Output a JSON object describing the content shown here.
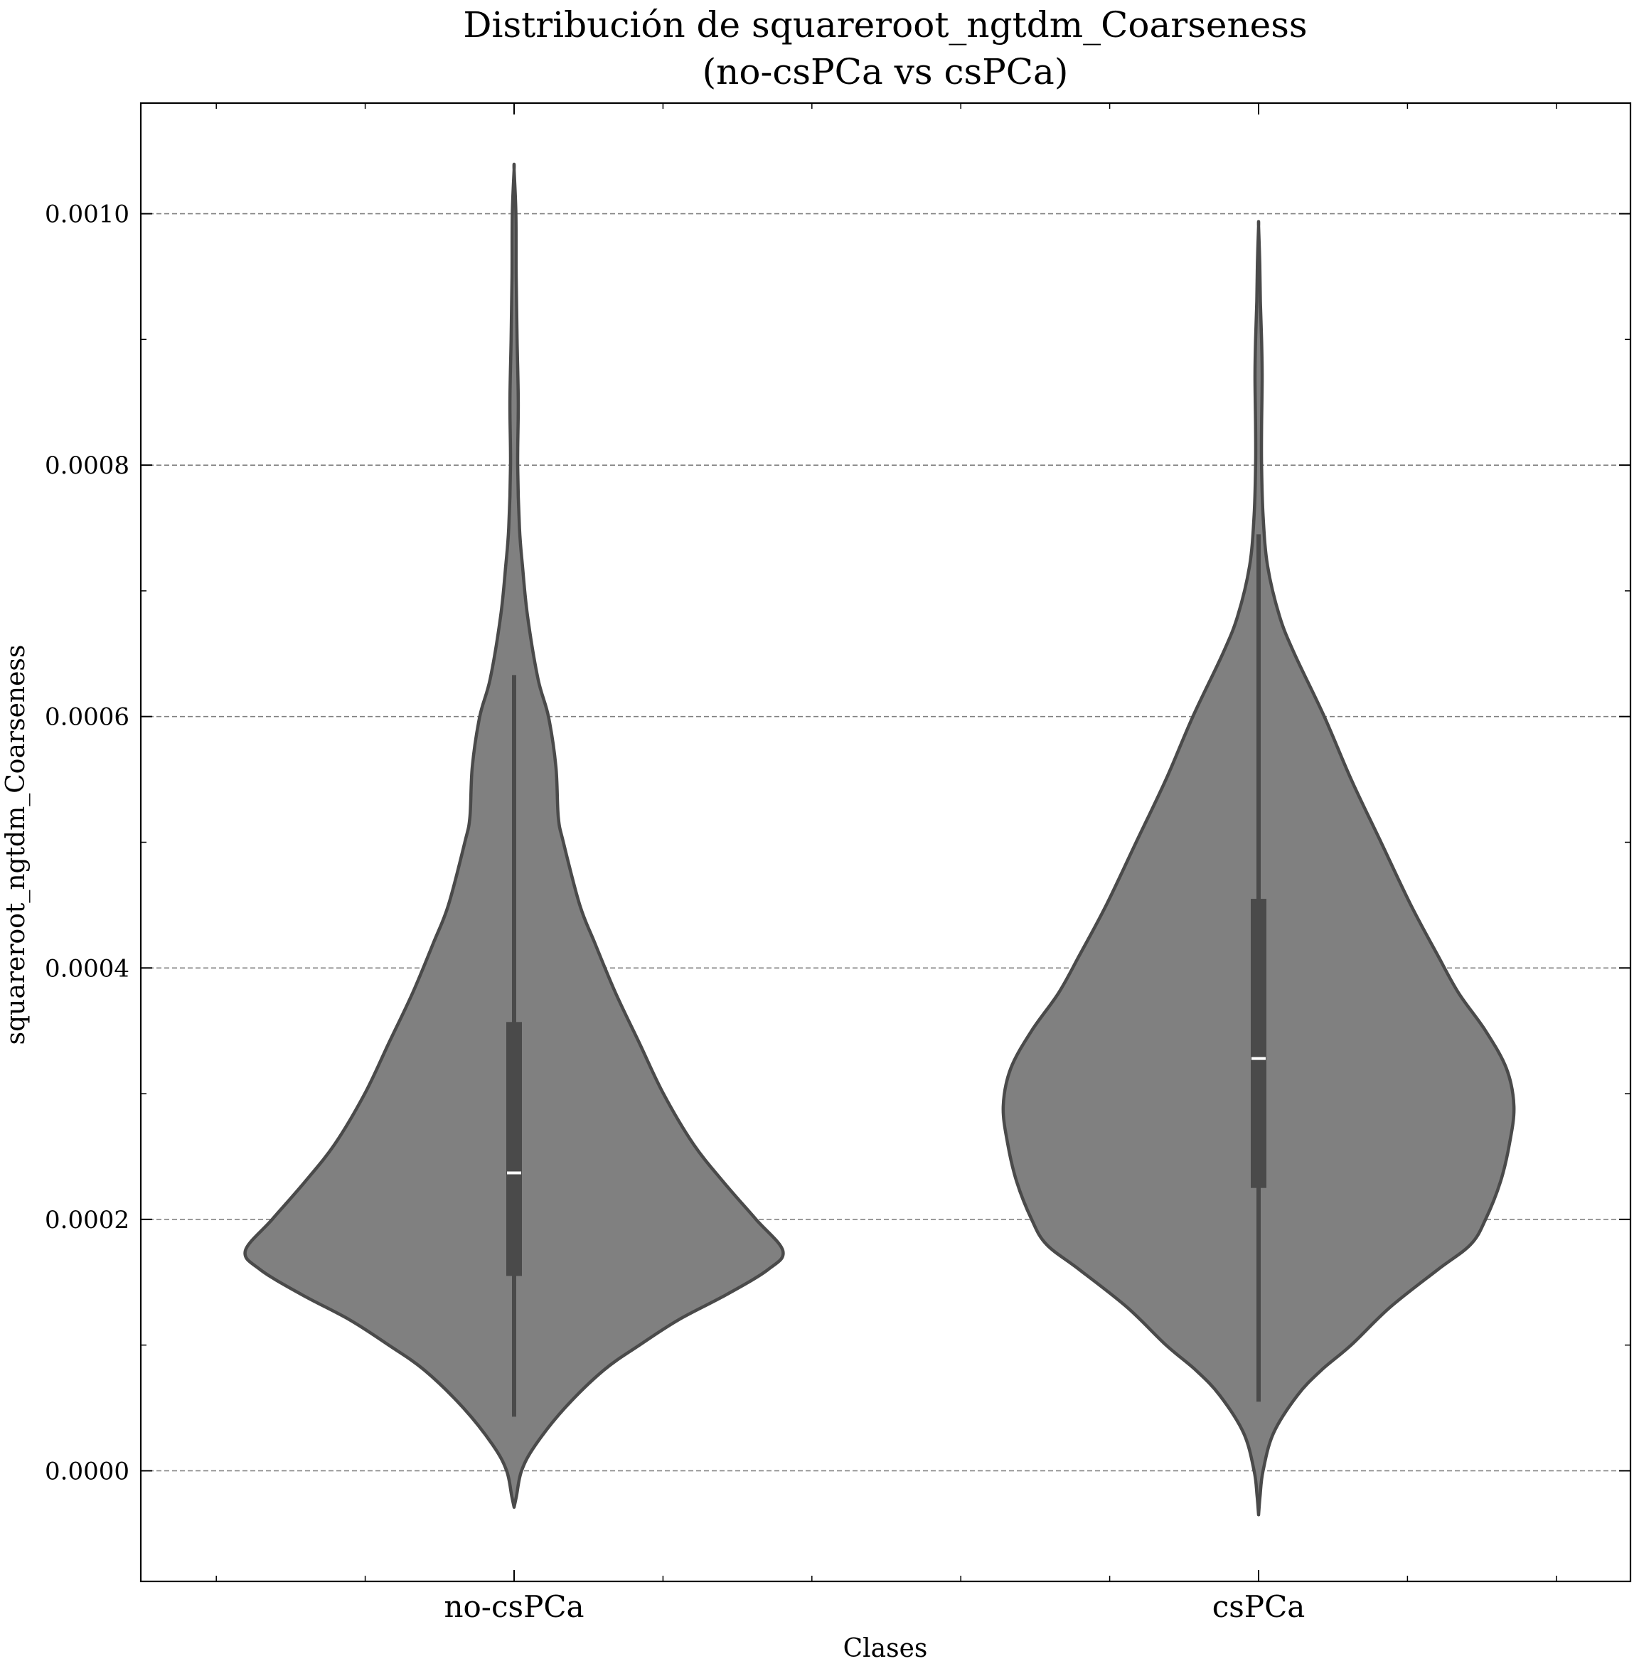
{
  "chart_data": {
    "type": "violin",
    "title_line1": "Distribución de squareroot_ngtdm_Coarseness",
    "title_line2": "(no-csPCa vs csPCa)",
    "xlabel": "Clases",
    "ylabel": "squareroot_ngtdm_Coarseness",
    "categories": [
      "no-csPCa",
      "csPCa"
    ],
    "ylim": [
      -8.8e-05,
      0.001088
    ],
    "yticks": [
      0.0,
      0.0002,
      0.0004,
      0.0006,
      0.0008,
      0.001
    ],
    "ytick_labels": [
      "0.0000",
      "0.0002",
      "0.0004",
      "0.0006",
      "0.0008",
      "0.0010"
    ],
    "grid": "y-dashed",
    "colors": {
      "violin_fill": "#808080",
      "violin_edge": "#4a4a4a",
      "box": "#4a4a4a",
      "median": "#ffffff",
      "grid": "#808080"
    },
    "violins": [
      {
        "category": "no-csPCa",
        "min": 4.3e-05,
        "q1": 0.000155,
        "median": 0.000237,
        "q3": 0.000357,
        "max": 0.000633,
        "density_y": [
          -2.9e-05,
          -2e-05,
          0.0,
          2e-05,
          5e-05,
          8e-05,
          0.0001,
          0.00012,
          0.00014,
          0.00016,
          0.000175,
          0.0002,
          0.00023,
          0.00026,
          0.0003,
          0.00034,
          0.00038,
          0.00042,
          0.00045,
          0.0005,
          0.00052,
          0.00056,
          0.0006,
          0.00063,
          0.00068,
          0.00072,
          0.00075,
          0.0008,
          0.00085,
          0.0009,
          0.00095,
          0.001,
          0.001035
        ],
        "half_width": [
          0.0,
          0.008,
          0.025,
          0.07,
          0.17,
          0.3,
          0.42,
          0.55,
          0.71,
          0.85,
          0.9,
          0.81,
          0.7,
          0.6,
          0.5,
          0.42,
          0.34,
          0.27,
          0.22,
          0.165,
          0.148,
          0.14,
          0.115,
          0.08,
          0.045,
          0.028,
          0.018,
          0.012,
          0.014,
          0.01,
          0.007,
          0.006,
          0.0
        ]
      },
      {
        "category": "csPCa",
        "min": 5.5e-05,
        "q1": 0.000225,
        "median": 0.000328,
        "q3": 0.000455,
        "max": 0.000745,
        "density_y": [
          -3.5e-05,
          -2e-05,
          0.0,
          3e-05,
          6e-05,
          8e-05,
          0.0001,
          0.00013,
          0.00016,
          0.00018,
          0.0002,
          0.00023,
          0.00026,
          0.00029,
          0.00032,
          0.00035,
          0.00038,
          0.00041,
          0.00045,
          0.0005,
          0.00055,
          0.0006,
          0.00065,
          0.00068,
          0.00072,
          0.00076,
          0.0008,
          0.00083,
          0.00087,
          0.0009,
          0.00093,
          0.00096,
          0.00099
        ],
        "half_width": [
          0.0,
          0.005,
          0.015,
          0.05,
          0.13,
          0.21,
          0.31,
          0.44,
          0.6,
          0.71,
          0.76,
          0.81,
          0.84,
          0.855,
          0.83,
          0.76,
          0.67,
          0.6,
          0.51,
          0.41,
          0.31,
          0.22,
          0.12,
          0.07,
          0.03,
          0.015,
          0.01,
          0.01,
          0.012,
          0.01,
          0.006,
          0.004,
          0.0
        ]
      }
    ]
  }
}
